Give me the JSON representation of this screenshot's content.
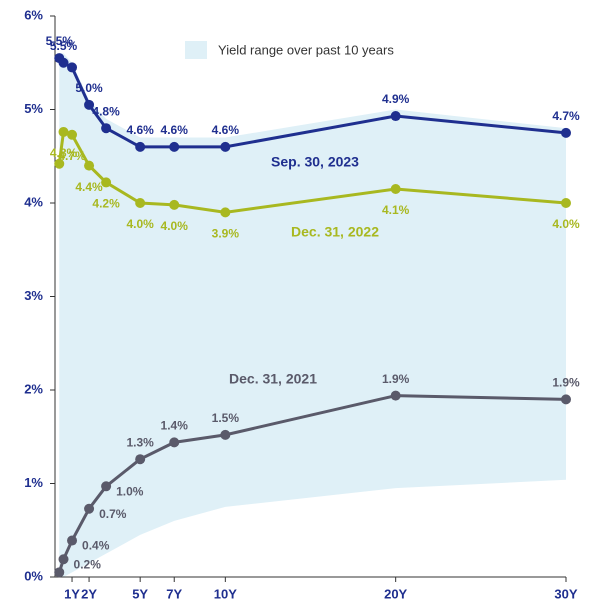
{
  "chart_data": {
    "type": "line",
    "legend_label": "Yield range over past 10 years",
    "range": {
      "color": "#dff0f7",
      "x": [
        0.25,
        0.5,
        1,
        2,
        3,
        5,
        7,
        10,
        20,
        30
      ],
      "upper": [
        5.6,
        5.6,
        5.5,
        5.1,
        4.9,
        4.7,
        4.7,
        4.7,
        5.0,
        4.8
      ],
      "lower": [
        0,
        0,
        0.05,
        0.15,
        0.25,
        0.45,
        0.6,
        0.75,
        0.95,
        1.04
      ]
    },
    "x": [
      0.25,
      0.5,
      1,
      2,
      3,
      5,
      7,
      10,
      20,
      30
    ],
    "series": [
      {
        "name": "Sep. 30, 2023",
        "color": "#1f2f8f",
        "values": [
          5.55,
          5.5,
          5.45,
          5.05,
          4.8,
          4.6,
          4.6,
          4.6,
          4.93,
          4.75
        ],
        "value_labels": [
          "5.5%",
          "5.5%",
          null,
          "5.0%",
          "4.8%",
          "4.6%",
          "4.6%",
          "4.6%",
          "4.9%",
          "4.7%"
        ]
      },
      {
        "name": "Dec. 31, 2022",
        "color": "#a8b820",
        "values": [
          4.42,
          4.76,
          4.73,
          4.4,
          4.22,
          4.0,
          3.98,
          3.9,
          4.15,
          4.0
        ],
        "value_labels": [
          null,
          "4.8%",
          "4.7%",
          "4.4%",
          "4.2%",
          "4.0%",
          "4.0%",
          "3.9%",
          "4.1%",
          "4.0%"
        ]
      },
      {
        "name": "Dec. 31, 2021",
        "color": "#5a5a6a",
        "values": [
          0.05,
          0.19,
          0.39,
          0.73,
          0.97,
          1.26,
          1.44,
          1.52,
          1.94,
          1.9
        ],
        "value_labels": [
          null,
          "0.2%",
          "0.4%",
          "0.7%",
          "1.0%",
          "1.3%",
          "1.4%",
          "1.5%",
          "1.9%",
          "1.9%"
        ]
      }
    ],
    "xlim": [
      0,
      30
    ],
    "xticks": [
      {
        "value": 1,
        "label": "1Y"
      },
      {
        "value": 2,
        "label": "2Y"
      },
      {
        "value": 5,
        "label": "5Y"
      },
      {
        "value": 7,
        "label": "7Y"
      },
      {
        "value": 10,
        "label": "10Y"
      },
      {
        "value": 20,
        "label": "20Y"
      },
      {
        "value": 30,
        "label": "30Y"
      }
    ],
    "ylim": [
      0,
      6
    ],
    "yticks": [
      {
        "value": 0,
        "label": "0%"
      },
      {
        "value": 1,
        "label": "1%"
      },
      {
        "value": 2,
        "label": "2%"
      },
      {
        "value": 3,
        "label": "3%"
      },
      {
        "value": 4,
        "label": "4%"
      },
      {
        "value": 5,
        "label": "5%"
      },
      {
        "value": 6,
        "label": "6%"
      }
    ]
  }
}
